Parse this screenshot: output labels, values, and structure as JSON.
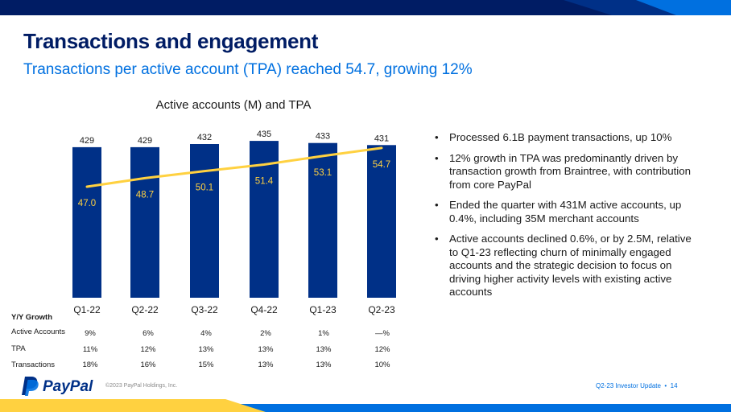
{
  "title": "Transactions and engagement",
  "subtitle": "Transactions per active account (TPA) reached 54.7, growing 12%",
  "chart_data": {
    "type": "bar",
    "title": "Active accounts (M) and TPA",
    "categories": [
      "Q1-22",
      "Q2-22",
      "Q3-22",
      "Q4-22",
      "Q1-23",
      "Q2-23"
    ],
    "series": [
      {
        "values": [
          429,
          429,
          432,
          435,
          433,
          431
        ],
        "color": "#003087",
        "kind": "bar"
      },
      {
        "values": [
          47.0,
          48.7,
          50.1,
          51.4,
          53.1,
          54.7
        ],
        "color": "#ffd140",
        "kind": "line"
      }
    ],
    "bar_labels": [
      "429",
      "429",
      "432",
      "435",
      "433",
      "431"
    ],
    "line_labels": [
      "47.0",
      "48.7",
      "50.1",
      "51.4",
      "53.1",
      "54.7"
    ],
    "grid": false,
    "legend": false
  },
  "growth_table": {
    "header": "Y/Y Growth",
    "rows": [
      {
        "label": "Active Accounts",
        "values": [
          "9%",
          "6%",
          "4%",
          "2%",
          "1%",
          "—%"
        ]
      },
      {
        "label": "TPA",
        "values": [
          "11%",
          "12%",
          "13%",
          "13%",
          "13%",
          "12%"
        ]
      },
      {
        "label": "Transactions",
        "values": [
          "18%",
          "16%",
          "15%",
          "13%",
          "13%",
          "10%"
        ]
      }
    ]
  },
  "bullets": [
    "Processed 6.1B payment transactions, up 10%",
    "12% growth in TPA was predominantly driven by transaction growth from Braintree, with contribution from core PayPal",
    "Ended the quarter with 431M active accounts, up 0.4%, including 35M merchant accounts",
    "Active accounts declined 0.6%, or by 2.5M, relative to Q1-23 reflecting churn of minimally engaged accounts and the strategic decision to focus on driving higher activity levels with existing active accounts"
  ],
  "footer": {
    "logo_text": "PayPal",
    "copyright": "©2023 PayPal Holdings, Inc.",
    "page_label": "Q2-23 Investor Update",
    "page_number": "14"
  },
  "colors": {
    "navy": "#001c64",
    "bar": "#003087",
    "blue": "#0070e0",
    "yellow": "#ffd140"
  }
}
